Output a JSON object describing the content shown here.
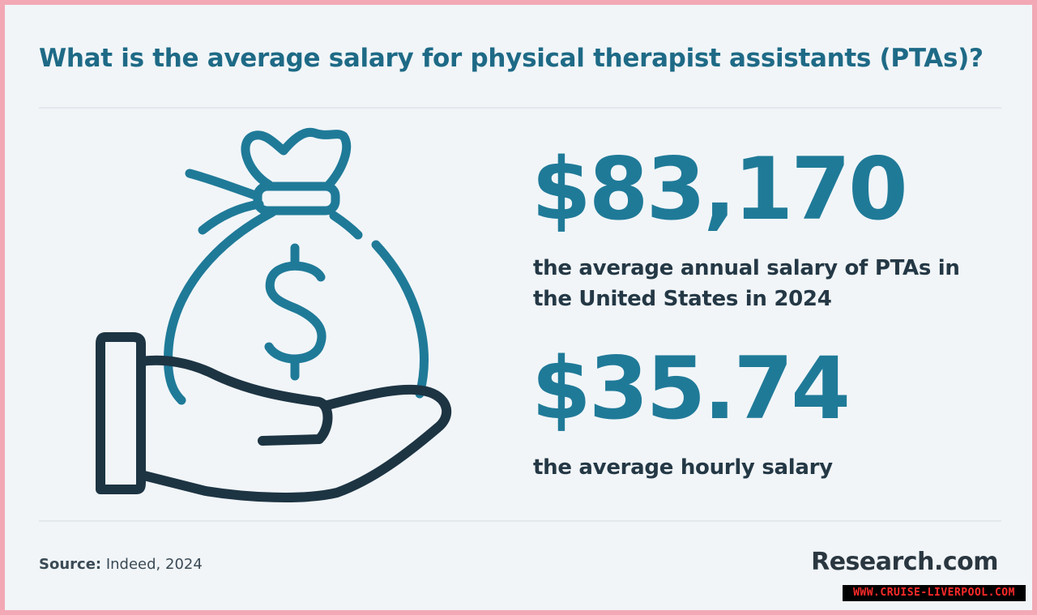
{
  "title": "What is the average salary for physical therapist assistants (PTAs)?",
  "stats": {
    "annual": {
      "value": "$83,170",
      "description": "the average annual salary of PTAs in the United States in 2024"
    },
    "hourly": {
      "value": "$35.74",
      "description": "the average hourly salary"
    }
  },
  "footer": {
    "source_label": "Source:",
    "source_text": "Indeed, 2024",
    "brand": "Research.com"
  },
  "watermark": "WWW.CRUISE-LIVERPOOL.COM",
  "colors": {
    "accent": "#1f7a98",
    "outline": "#1d3443",
    "background": "#f1f5f8",
    "frame": "#f2a9b5"
  },
  "icons": [
    "money-bag-icon",
    "hand-icon",
    "dollar-sign-icon"
  ]
}
